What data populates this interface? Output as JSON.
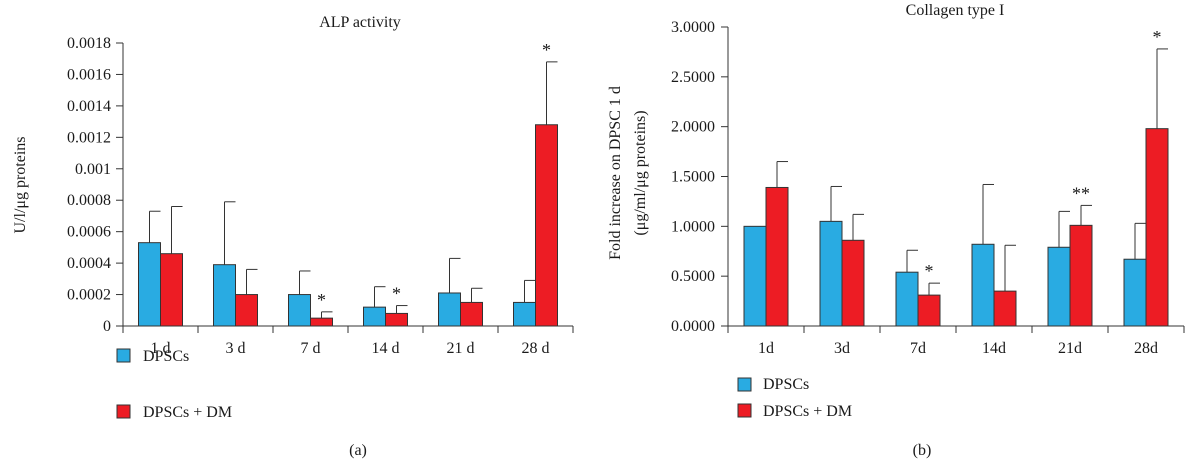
{
  "colors": {
    "DPSCs": "#29abe2",
    "DPSCs + DM": "#ed1c24",
    "axis": "#333333"
  },
  "chart_data": [
    {
      "type": "bar",
      "panel_label": "(a)",
      "title": "ALP activity",
      "xlabel": "",
      "ylabel": "U/l/μg proteins",
      "ylim": [
        0,
        0.0018
      ],
      "yticks": [
        "0",
        "0.0002",
        "0.0004",
        "0.0006",
        "0.0008",
        "0.001",
        "0.0012",
        "0.0014",
        "0.0016",
        "0.0018"
      ],
      "categories": [
        "1 d",
        "3 d",
        "7 d",
        "14 d",
        "21 d",
        "28 d"
      ],
      "series": [
        {
          "name": "DPSCs",
          "values": [
            0.00053,
            0.00039,
            0.0002,
            0.00012,
            0.00021,
            0.00015
          ],
          "errors": [
            0.0002,
            0.0004,
            0.00015,
            0.00013,
            0.00022,
            0.00014
          ]
        },
        {
          "name": "DPSCs + DM",
          "values": [
            0.00046,
            0.0002,
            5e-05,
            8e-05,
            0.00015,
            0.00128
          ],
          "errors": [
            0.0003,
            0.00016,
            4e-05,
            5e-05,
            9e-05,
            0.0004
          ]
        }
      ],
      "annotations": [
        {
          "category": "7 d",
          "series": "DPSCs + DM",
          "text": "*"
        },
        {
          "category": "14 d",
          "series": "DPSCs + DM",
          "text": "*"
        },
        {
          "category": "28 d",
          "series": "DPSCs + DM",
          "text": "*"
        }
      ],
      "grid": false,
      "legend_position": "bottom-left"
    },
    {
      "type": "bar",
      "panel_label": "(b)",
      "title": "Collagen type I",
      "xlabel": "",
      "ylabel": "Fold increase on DPSC 1 d",
      "ylabel2": "(μg/ml/μg proteins)",
      "ylim": [
        0,
        3.0
      ],
      "yticks": [
        "0.0000",
        "0.5000",
        "1.0000",
        "1.5000",
        "2.0000",
        "2.5000",
        "3.0000"
      ],
      "categories": [
        "1d",
        "3d",
        "7d",
        "14d",
        "21d",
        "28d"
      ],
      "series": [
        {
          "name": "DPSCs",
          "values": [
            1.0,
            1.05,
            0.54,
            0.82,
            0.79,
            0.67
          ],
          "errors": [
            0.0,
            0.35,
            0.22,
            0.6,
            0.36,
            0.36
          ]
        },
        {
          "name": "DPSCs + DM",
          "values": [
            1.39,
            0.86,
            0.31,
            0.35,
            1.01,
            1.98
          ],
          "errors": [
            0.26,
            0.26,
            0.12,
            0.46,
            0.2,
            0.8
          ]
        }
      ],
      "annotations": [
        {
          "category": "7d",
          "series": "DPSCs + DM",
          "text": "*"
        },
        {
          "category": "21d",
          "series": "DPSCs + DM",
          "text": "**"
        },
        {
          "category": "28d",
          "series": "DPSCs + DM",
          "text": "*"
        }
      ],
      "grid": false,
      "legend_position": "bottom-left"
    }
  ]
}
